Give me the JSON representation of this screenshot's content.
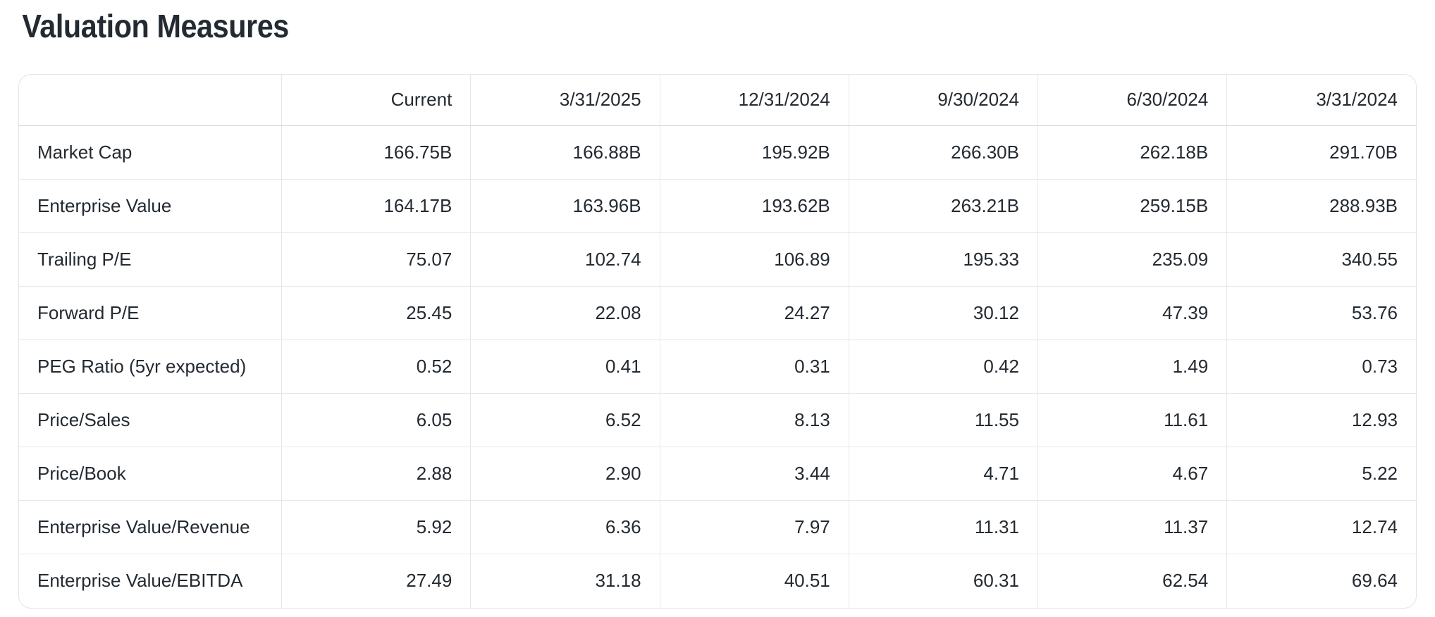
{
  "page": {
    "title": "Valuation Measures"
  },
  "table": {
    "columns": [
      "",
      "Current",
      "3/31/2025",
      "12/31/2024",
      "9/30/2024",
      "6/30/2024",
      "3/31/2024"
    ],
    "rows": [
      {
        "label": "Market Cap",
        "values": [
          "166.75B",
          "166.88B",
          "195.92B",
          "266.30B",
          "262.18B",
          "291.70B"
        ]
      },
      {
        "label": "Enterprise Value",
        "values": [
          "164.17B",
          "163.96B",
          "193.62B",
          "263.21B",
          "259.15B",
          "288.93B"
        ]
      },
      {
        "label": "Trailing P/E",
        "values": [
          "75.07",
          "102.74",
          "106.89",
          "195.33",
          "235.09",
          "340.55"
        ]
      },
      {
        "label": "Forward P/E",
        "values": [
          "25.45",
          "22.08",
          "24.27",
          "30.12",
          "47.39",
          "53.76"
        ]
      },
      {
        "label": "PEG Ratio (5yr expected)",
        "values": [
          "0.52",
          "0.41",
          "0.31",
          "0.42",
          "1.49",
          "0.73"
        ]
      },
      {
        "label": "Price/Sales",
        "values": [
          "6.05",
          "6.52",
          "8.13",
          "11.55",
          "11.61",
          "12.93"
        ]
      },
      {
        "label": "Price/Book",
        "values": [
          "2.88",
          "2.90",
          "3.44",
          "4.71",
          "4.67",
          "5.22"
        ]
      },
      {
        "label": "Enterprise Value/Revenue",
        "values": [
          "5.92",
          "6.36",
          "7.97",
          "11.31",
          "11.37",
          "12.74"
        ]
      },
      {
        "label": "Enterprise Value/EBITDA",
        "values": [
          "27.49",
          "31.18",
          "40.51",
          "60.31",
          "62.54",
          "69.64"
        ]
      }
    ]
  },
  "colors": {
    "text": "#232a31",
    "border": "#e0e4e9",
    "header_divider": "#d2d6db",
    "background": "#ffffff"
  }
}
